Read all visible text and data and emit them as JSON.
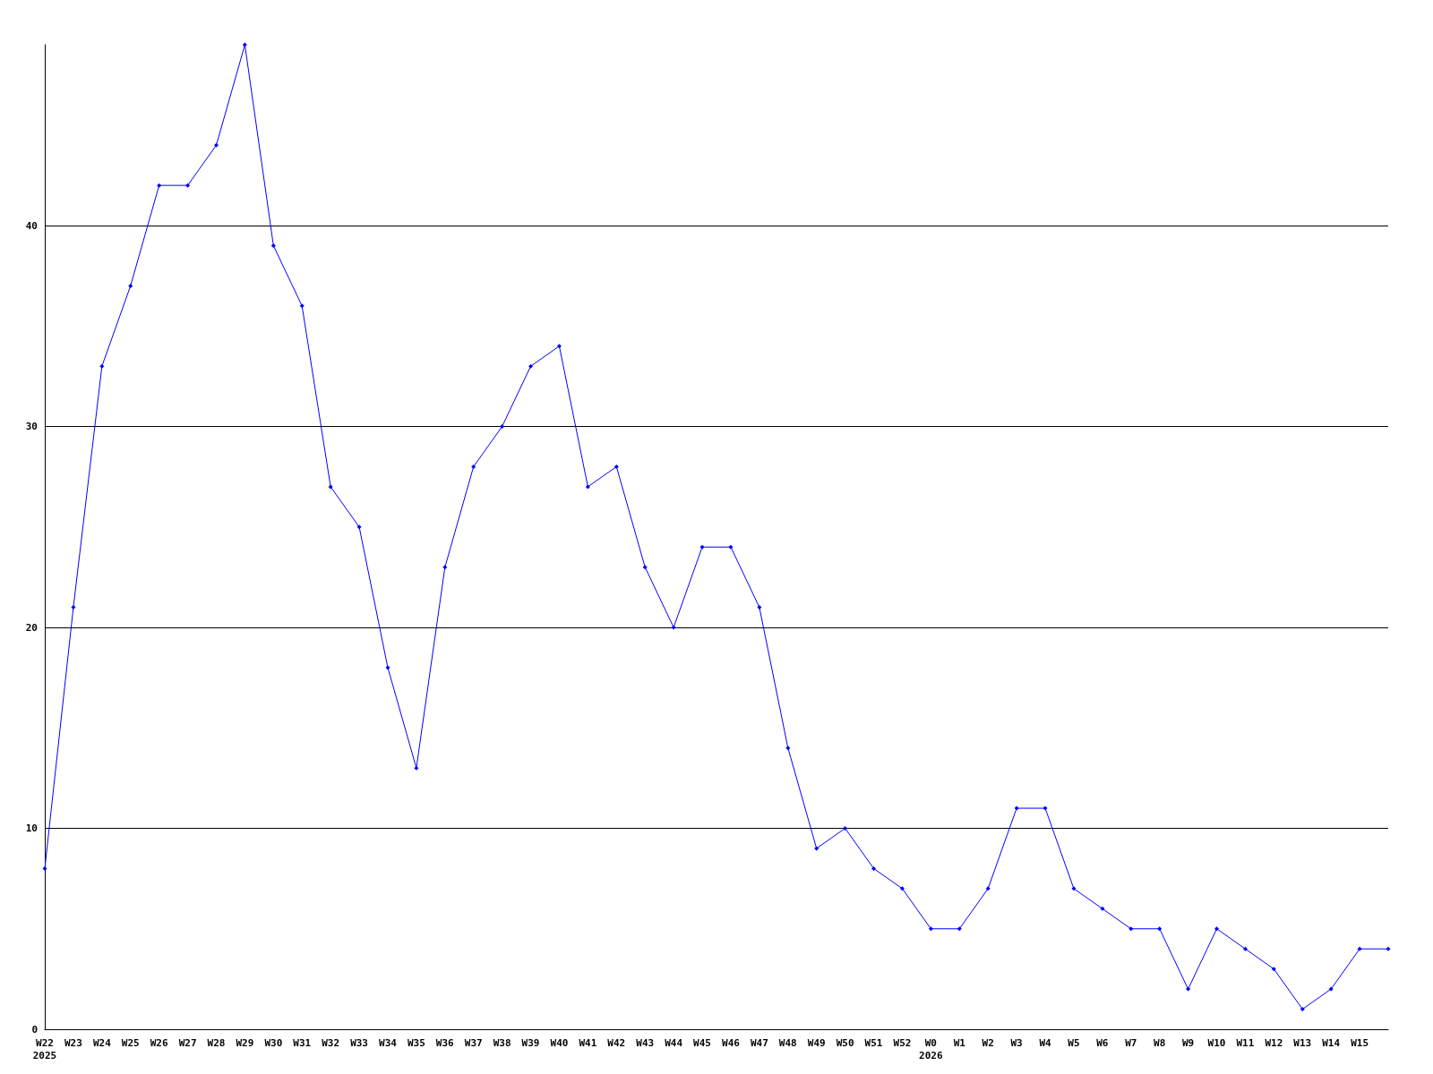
{
  "chart_data": {
    "type": "line",
    "categories": [
      "W22",
      "W23",
      "W24",
      "W25",
      "W26",
      "W27",
      "W28",
      "W29",
      "W30",
      "W31",
      "W32",
      "W33",
      "W34",
      "W35",
      "W36",
      "W37",
      "W38",
      "W39",
      "W40",
      "W41",
      "W42",
      "W43",
      "W44",
      "W45",
      "W46",
      "W47",
      "W48",
      "W49",
      "W50",
      "W51",
      "W52",
      "W0",
      "W1",
      "W2",
      "W3",
      "W4",
      "W5",
      "W6",
      "W7",
      "W8",
      "W9",
      "W10",
      "W11",
      "W12",
      "W13",
      "W14",
      "W15",
      null
    ],
    "series": [
      {
        "color": "#0000ff",
        "values": [
          8,
          21,
          33,
          37,
          42,
          42,
          44,
          49,
          39,
          36,
          27,
          25,
          18,
          13,
          23,
          28,
          30,
          33,
          34,
          27,
          28,
          23,
          20,
          24,
          24,
          21,
          14,
          9,
          10,
          8,
          7,
          5,
          5,
          7,
          11,
          11,
          7,
          6,
          5,
          5,
          2,
          5,
          4,
          3,
          1,
          2,
          4,
          4
        ]
      }
    ],
    "ylim": [
      0,
      49
    ],
    "yticks": [
      0,
      10,
      20,
      30,
      40
    ],
    "grid": "y",
    "marker": "diamond",
    "line_style": "solid",
    "annotations": [
      "2025",
      "2026"
    ]
  }
}
